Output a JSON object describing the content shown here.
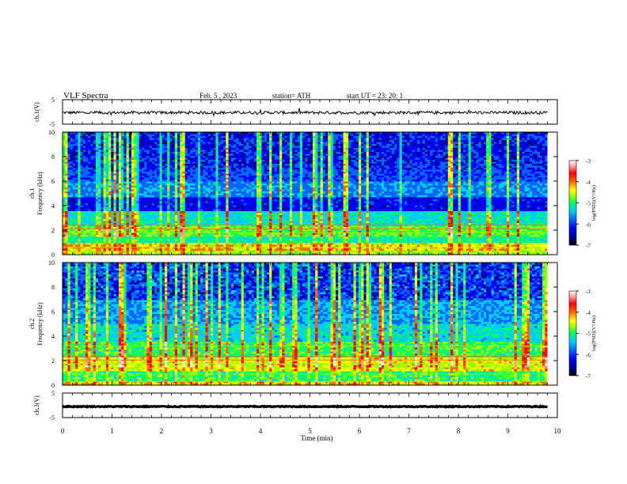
{
  "header": {
    "title": "VLF  Spectra",
    "date": "Feb. 5  , 2023",
    "station": "station= ATH",
    "start": "start  UT  =   23: 20: 1"
  },
  "colors": {
    "colormap": [
      "#000000",
      "#00008b",
      "#0000ff",
      "#0066ff",
      "#00ccff",
      "#00ff66",
      "#99ff00",
      "#ffff00",
      "#ff6600",
      "#ff0000",
      "#ff9999",
      "#ffffff"
    ],
    "trace": "#000000"
  },
  "chart_data": [
    {
      "type": "line",
      "name": "ch1-waveform",
      "ylabel": "ch.1(V)",
      "ylim": [
        -5,
        5
      ],
      "y_ticks": [
        "5",
        "-5"
      ],
      "xlim": [
        0,
        10
      ],
      "description_values": {
        "baseline": -0.3,
        "noise_amplitude": 0.6
      }
    },
    {
      "type": "heatmap",
      "name": "ch1-spectrogram",
      "ylabel": "Frequency  (kHz)",
      "ylabel_channel": "ch.1",
      "ylim": [
        0,
        10
      ],
      "y_ticks": [
        "0",
        "2",
        "4",
        "6",
        "8",
        "10"
      ],
      "xlim": [
        0,
        10
      ],
      "colorbar": {
        "label": "log(PSD)(V²/Hz)",
        "range": [
          -7,
          -3
        ],
        "ticks": [
          "-3",
          "-4",
          "-5",
          "-6",
          "-7"
        ]
      }
    },
    {
      "type": "heatmap",
      "name": "ch2-spectrogram",
      "ylabel": "Frequency  (kHz)",
      "ylabel_channel": "ch.2",
      "ylim": [
        0,
        10
      ],
      "y_ticks": [
        "0",
        "2",
        "4",
        "6",
        "8",
        "10"
      ],
      "xlim": [
        0,
        10
      ],
      "colorbar": {
        "label": "log(PSD)(V²/Hz)",
        "range": [
          -7,
          -3
        ],
        "ticks": [
          "-3",
          "-4",
          "-5",
          "-6",
          "-7"
        ]
      }
    },
    {
      "type": "line",
      "name": "ch3-waveform",
      "ylabel": "ch.3(V)",
      "ylim": [
        -5,
        5
      ],
      "y_ticks": [
        "5",
        "-5"
      ],
      "xlim": [
        0,
        10
      ],
      "description_values": {
        "baseline": -0.5,
        "noise_amplitude": 0.2
      }
    }
  ],
  "x_axis": {
    "label": "Time  (min)",
    "ticks": [
      "0",
      "1",
      "2",
      "3",
      "4",
      "5",
      "6",
      "7",
      "8",
      "9",
      "10"
    ]
  }
}
